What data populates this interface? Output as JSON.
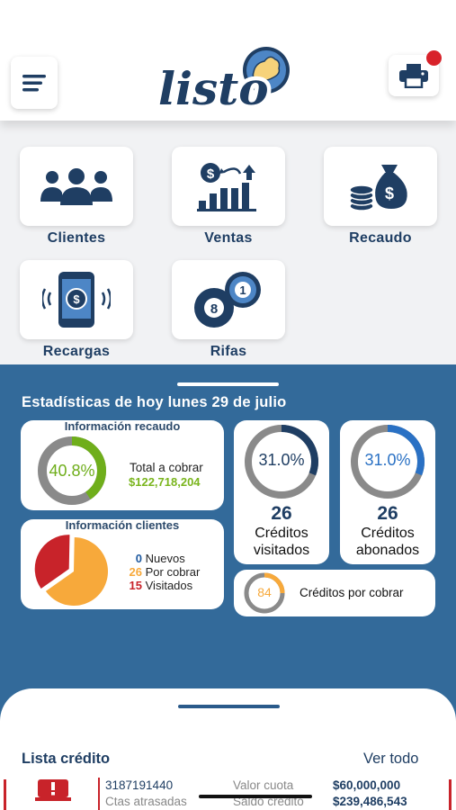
{
  "app": {
    "logo_text": "listo",
    "colors": {
      "primary": "#1f3e63",
      "panel": "#336a9a",
      "accent_green": "#7ab51d",
      "accent_orange": "#f7a93b",
      "accent_red": "#c8232a"
    }
  },
  "header": {
    "menu_icon": "hamburger-menu-icon",
    "print_icon": "printer-icon",
    "notification_dot": true
  },
  "modules": [
    {
      "label": "Clientes",
      "icon": "users-group-icon"
    },
    {
      "label": "Ventas",
      "icon": "sales-growth-icon"
    },
    {
      "label": "Recaudo",
      "icon": "money-bag-icon"
    },
    {
      "label": "Recargas",
      "icon": "phone-recharge-icon"
    },
    {
      "label": "Rifas",
      "icon": "lottery-balls-icon"
    }
  ],
  "stats": {
    "title": "Estadísticas de hoy lunes 29 de julio",
    "recaudo": {
      "title": "Información recaudo",
      "percent_label": "40.8%",
      "percent": 40.8,
      "total_label": "Total a cobrar",
      "total_value": "$122,718,204"
    },
    "clientes": {
      "title": "Información clientes",
      "items": [
        {
          "count": "0",
          "label": "Nuevos",
          "color": "#1f5aa0"
        },
        {
          "count": "26",
          "label": "Por cobrar",
          "color": "#f7a93b"
        },
        {
          "count": "15",
          "label": "Visitados",
          "color": "#c8232a"
        }
      ],
      "pie": {
        "por_cobrar": 26,
        "visitados": 15
      }
    },
    "visitados": {
      "percent_label": "31.0%",
      "percent": 31.0,
      "count": "26",
      "caption": "Créditos visitados"
    },
    "abonados": {
      "percent_label": "31.0%",
      "percent": 31.0,
      "count": "26",
      "caption": "Créditos abonados"
    },
    "por_cobrar": {
      "count": "84",
      "caption": "Créditos por cobrar"
    }
  },
  "credit_list": {
    "title": "Lista crédito",
    "see_all": "Ver todo",
    "rows": [
      {
        "phone": "3187191440",
        "label_cuota": "Valor cuota",
        "cuota": "$60,000,000",
        "label_atrasadas": "Ctas atrasadas",
        "label_saldo": "Saldo crédito",
        "saldo": "$239,486,543",
        "status_icon": "alert-icon"
      }
    ]
  }
}
